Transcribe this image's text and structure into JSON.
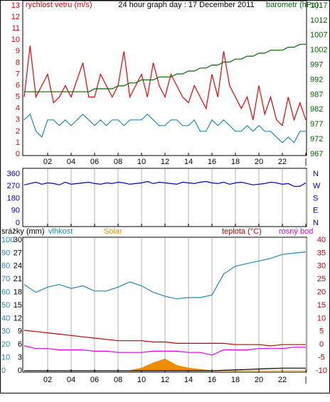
{
  "chart_data": [
    {
      "type": "line",
      "title": "24 hour graph day : 17 December 2011",
      "ylabel": "rychlost vetru (m/s)",
      "y2label": "barometr (hPa)",
      "xlim": [
        0,
        24
      ],
      "xticks": [
        {
          "value": 2,
          "label": "02"
        },
        {
          "value": 4,
          "label": "04"
        },
        {
          "value": 6,
          "label": "06"
        },
        {
          "value": 8,
          "label": "08"
        },
        {
          "value": 10,
          "label": "10"
        },
        {
          "value": 12,
          "label": "12"
        },
        {
          "value": 14,
          "label": "14"
        },
        {
          "value": 16,
          "label": "16"
        },
        {
          "value": 18,
          "label": "18"
        },
        {
          "value": 20,
          "label": "20"
        },
        {
          "value": 22,
          "label": "22"
        },
        {
          "value": 24,
          "label": "|"
        }
      ],
      "ylim": [
        0,
        13
      ],
      "yticks": [
        0,
        1,
        2,
        3,
        4,
        5,
        6,
        7,
        8,
        9,
        10,
        11,
        12,
        13
      ],
      "y2lim": [
        967,
        1017
      ],
      "y2ticks": [
        967,
        972,
        977,
        982,
        987,
        992,
        997,
        1002,
        1007,
        1012,
        1017
      ],
      "grid": false,
      "x": [
        0,
        0.5,
        1,
        1.5,
        2,
        2.5,
        3,
        3.5,
        4,
        4.5,
        5,
        5.5,
        6,
        6.5,
        7,
        7.5,
        8,
        8.5,
        9,
        9.5,
        10,
        10.5,
        11,
        11.5,
        12,
        12.5,
        13,
        13.5,
        14,
        14.5,
        15,
        15.5,
        16,
        16.5,
        17,
        17.5,
        18,
        18.5,
        19,
        19.5,
        20,
        20.5,
        21,
        21.5,
        22,
        22.5,
        23,
        23.5,
        24
      ],
      "series": [
        {
          "color": "#ee0000",
          "axis": "y",
          "values": [
            5,
            9.5,
            5,
            6,
            7,
            4.5,
            5,
            6,
            5,
            6.5,
            8,
            5,
            5,
            7,
            6,
            5,
            6,
            9,
            5,
            6,
            7,
            5,
            8,
            6,
            5,
            7,
            6,
            5,
            4.5,
            6,
            5,
            4,
            7,
            5,
            9,
            6,
            5,
            4,
            5,
            3,
            6,
            3.5,
            5,
            3,
            2.5,
            5,
            3,
            4.5,
            3
          ]
        },
        {
          "color": "#2088b8",
          "axis": "y",
          "values": [
            3,
            3.5,
            2,
            1.5,
            3,
            3,
            2.5,
            3,
            2.5,
            3,
            3.5,
            3,
            2.5,
            3,
            2.5,
            3,
            3,
            2.5,
            3,
            3,
            3,
            3.5,
            3,
            2.5,
            2.5,
            3,
            3,
            2.5,
            2.5,
            3,
            2,
            2,
            3,
            2.5,
            3,
            2.5,
            2,
            2,
            2.5,
            2,
            2.5,
            2,
            2,
            1.5,
            1,
            1.5,
            1,
            2,
            2
          ]
        },
        {
          "color": "#006600",
          "axis": "y2",
          "values": [
            988,
            988,
            988,
            988,
            988,
            988,
            988,
            988,
            988,
            988,
            988,
            988,
            989,
            989,
            989,
            989,
            990,
            990,
            991,
            991,
            992,
            992,
            992,
            993,
            993,
            993,
            994,
            994,
            995,
            995,
            996,
            996,
            997,
            997,
            998,
            998,
            999,
            999,
            1000,
            1000,
            1001,
            1001,
            1002,
            1002,
            1002,
            1003,
            1003,
            1004,
            1004
          ]
        }
      ]
    },
    {
      "type": "line",
      "xlim": [
        0,
        24
      ],
      "xticks": [
        {
          "value": 2,
          "label": "02"
        },
        {
          "value": 4,
          "label": "04"
        },
        {
          "value": 6,
          "label": "06"
        },
        {
          "value": 8,
          "label": "08"
        },
        {
          "value": 10,
          "label": "10"
        },
        {
          "value": 12,
          "label": "12"
        },
        {
          "value": 14,
          "label": "14"
        },
        {
          "value": 16,
          "label": "16"
        },
        {
          "value": 18,
          "label": "18"
        },
        {
          "value": 20,
          "label": "20"
        },
        {
          "value": 22,
          "label": "22"
        },
        {
          "value": 24,
          "label": "|"
        }
      ],
      "ylim": [
        0,
        360
      ],
      "yticks": [
        0,
        90,
        180,
        270,
        360
      ],
      "y2lim": [
        0,
        360
      ],
      "y2ticks": [
        {
          "value": 0,
          "label": "N"
        },
        {
          "value": 90,
          "label": "E"
        },
        {
          "value": 180,
          "label": "S"
        },
        {
          "value": 270,
          "label": "W"
        },
        {
          "value": 360,
          "label": "N"
        }
      ],
      "grid": "x",
      "x": [
        0,
        0.5,
        1,
        1.5,
        2,
        2.5,
        3,
        3.5,
        4,
        4.5,
        5,
        5.5,
        6,
        6.5,
        7,
        7.5,
        8,
        8.5,
        9,
        9.5,
        10,
        10.5,
        11,
        11.5,
        12,
        12.5,
        13,
        13.5,
        14,
        14.5,
        15,
        15.5,
        16,
        16.5,
        17,
        17.5,
        18,
        18.5,
        19,
        19.5,
        20,
        20.5,
        21,
        21.5,
        22,
        22.5,
        23,
        23.5,
        24
      ],
      "series": [
        {
          "color": "#0000c0",
          "axis": "y",
          "values": [
            280,
            290,
            300,
            285,
            295,
            290,
            280,
            300,
            285,
            290,
            295,
            300,
            290,
            285,
            295,
            290,
            300,
            295,
            285,
            290,
            295,
            305,
            290,
            300,
            295,
            290,
            285,
            300,
            295,
            290,
            300,
            305,
            295,
            290,
            300,
            285,
            295,
            300,
            290,
            280,
            285,
            290,
            300,
            295,
            285,
            290,
            270,
            270,
            295
          ]
        }
      ]
    },
    {
      "type": "line",
      "ylabel": "srážky (mm)",
      "xlim": [
        0,
        24
      ],
      "xticks": [
        {
          "value": 2,
          "label": "02"
        },
        {
          "value": 4,
          "label": "04"
        },
        {
          "value": 6,
          "label": "06"
        },
        {
          "value": 8,
          "label": "08"
        },
        {
          "value": 10,
          "label": "10"
        },
        {
          "value": 12,
          "label": "12"
        },
        {
          "value": 14,
          "label": "14"
        },
        {
          "value": 16,
          "label": "16"
        },
        {
          "value": 18,
          "label": "18"
        },
        {
          "value": 20,
          "label": "20"
        },
        {
          "value": 22,
          "label": "22"
        },
        {
          "value": 24,
          "label": "|"
        }
      ],
      "ylim": [
        0,
        30
      ],
      "yticks": [
        0,
        3,
        6,
        9,
        12,
        15,
        18,
        21,
        24,
        27,
        30
      ],
      "y2lim": [
        0,
        100
      ],
      "y2ticks": [
        0,
        10,
        20,
        30,
        40,
        50,
        60,
        70,
        80,
        90,
        100
      ],
      "y3lim": [
        -10,
        40
      ],
      "y3ticks": [
        -10,
        -5,
        0,
        5,
        10,
        15,
        20,
        25,
        30,
        35,
        40
      ],
      "grid": "x",
      "x": [
        0,
        1,
        2,
        3,
        4,
        5,
        6,
        7,
        8,
        9,
        10,
        11,
        12,
        13,
        14,
        15,
        16,
        17,
        18,
        19,
        20,
        21,
        22,
        23,
        24
      ],
      "series": [
        {
          "name": "vlhkost",
          "color": "#2088b8",
          "axis": "y2",
          "values": [
            66,
            60,
            64,
            66,
            63,
            65,
            61,
            61,
            64,
            68,
            65,
            60,
            57,
            55,
            56,
            56,
            58,
            74,
            80,
            82,
            84,
            86,
            89,
            90,
            91
          ]
        },
        {
          "name": "Solar",
          "color": "#f08c00",
          "axis": "y2",
          "fill": true,
          "values": [
            0,
            0,
            0,
            0,
            0,
            0,
            0,
            0,
            0,
            0,
            2,
            6,
            9,
            4,
            2,
            1,
            0,
            0,
            0,
            0,
            0,
            0,
            0,
            0,
            0
          ]
        },
        {
          "name": "teplota (°C)",
          "color": "#c00000",
          "axis": "y3",
          "values": [
            5.5,
            5,
            4.5,
            4,
            3.5,
            3,
            2.5,
            2,
            1.5,
            1.5,
            1.5,
            1,
            1,
            0.5,
            0.5,
            0.5,
            0.5,
            0.5,
            0,
            0,
            0,
            -0.5,
            0,
            0,
            0
          ]
        },
        {
          "name": "rosný bod",
          "color": "#e000e0",
          "axis": "y3",
          "values": [
            -0.5,
            -1.5,
            -1.5,
            -2,
            -2,
            -2,
            -2.5,
            -2.5,
            -3,
            -3,
            -3,
            -2.5,
            -2.5,
            -2.5,
            -3,
            -3,
            -4,
            -2,
            -2,
            -2,
            -1.5,
            -1.5,
            -1.5,
            -1,
            -1
          ]
        },
        {
          "color": "#000000",
          "axis": "y",
          "values": [
            0,
            0,
            0,
            0,
            0,
            0,
            0,
            0,
            0,
            0,
            0,
            0,
            0,
            0,
            0,
            0,
            0,
            0.1,
            0.2,
            0.3,
            0.4,
            0.5,
            0.6,
            0.6,
            0.6
          ]
        }
      ]
    }
  ]
}
